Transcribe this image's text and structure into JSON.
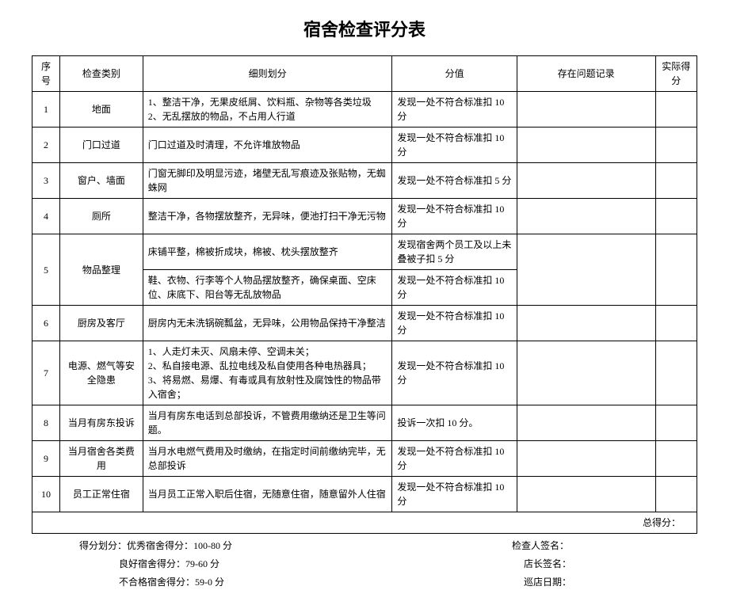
{
  "title": "宿舍检查评分表",
  "headers": {
    "seq": "序号",
    "category": "检查类别",
    "detail": "细则划分",
    "score": "分值",
    "issue": "存在问题记录",
    "actual": "实际得分"
  },
  "rows": [
    {
      "seq": "1",
      "category": "地面",
      "details": [
        "1、整洁干净，无果皮纸屑、饮料瓶、杂物等各类垃圾　　　2、无乱摆放的物品，不占用人行道"
      ],
      "scores": [
        "发现一处不符合标准扣 10 分"
      ]
    },
    {
      "seq": "2",
      "category": "门口过道",
      "details": [
        "门口过道及时清理，不允许堆放物品"
      ],
      "scores": [
        "发现一处不符合标准扣 10 分"
      ]
    },
    {
      "seq": "3",
      "category": "窗户、墙面",
      "details": [
        "门窗无脚印及明显污迹，堵壁无乱写痕迹及张贴物，无蜘蛛网"
      ],
      "scores": [
        "发现一处不符合标准扣 5 分"
      ]
    },
    {
      "seq": "4",
      "category": "厕所",
      "details": [
        "整洁干净，各物摆放整齐，无异味，便池打扫干净无污物"
      ],
      "scores": [
        "发现一处不符合标准扣 10 分"
      ]
    },
    {
      "seq": "5",
      "category": "物品整理",
      "details": [
        "床铺平整，棉被折成块，棉被、枕头摆放整齐",
        "鞋、衣物、行李等个人物品摆放整齐，确保桌面、空床位、床底下、阳台等无乱放物品"
      ],
      "scores": [
        "发现宿舍两个员工及以上未叠被子扣 5 分",
        "发现一处不符合标准扣 10 分"
      ]
    },
    {
      "seq": "6",
      "category": "厨房及客厅",
      "details": [
        "厨房内无未洗锅碗瓢盆，无异味，公用物品保持干净整洁"
      ],
      "scores": [
        "发现一处不符合标准扣 10 分"
      ]
    },
    {
      "seq": "7",
      "category": "电源、燃气等安全隐患",
      "details": [
        "1、人走灯未灭、风扇未停、空调未关；\n2、私自接电源、乱拉电线及私自使用各种电热器具；\n3、将易燃、易爆、有毒或具有放射性及腐蚀性的物品带入宿舍；"
      ],
      "scores": [
        "发现一处不符合标准扣 10 分"
      ]
    },
    {
      "seq": "8",
      "category": "当月有房东投诉",
      "details": [
        "当月有房东电话到总部投诉，不管费用缴纳还是卫生等问题。"
      ],
      "scores": [
        "投诉一次扣 10 分。"
      ]
    },
    {
      "seq": "9",
      "category": "当月宿舍各类费用",
      "details": [
        "当月水电燃气费用及时缴纳，在指定时间前缴纳完毕，无总部投诉"
      ],
      "scores": [
        "发现一处不符合标准扣 10 分"
      ]
    },
    {
      "seq": "10",
      "category": "员工正常住宿",
      "details": [
        "当月员工正常入职后住宿，无随意住宿，随意留外人住宿"
      ],
      "scores": [
        "发现一处不符合标准扣 10 分"
      ]
    }
  ],
  "total_label": "总得分：",
  "footer": {
    "grading_label": "得分划分：",
    "excellent": "优秀宿舍得分：100-80 分",
    "good": "良好宿舍得分：79-60 分",
    "fail": "不合格宿舍得分：59-0 分",
    "inspector": "检查人签名：",
    "manager": "店长签名：",
    "date": "巡店日期："
  }
}
